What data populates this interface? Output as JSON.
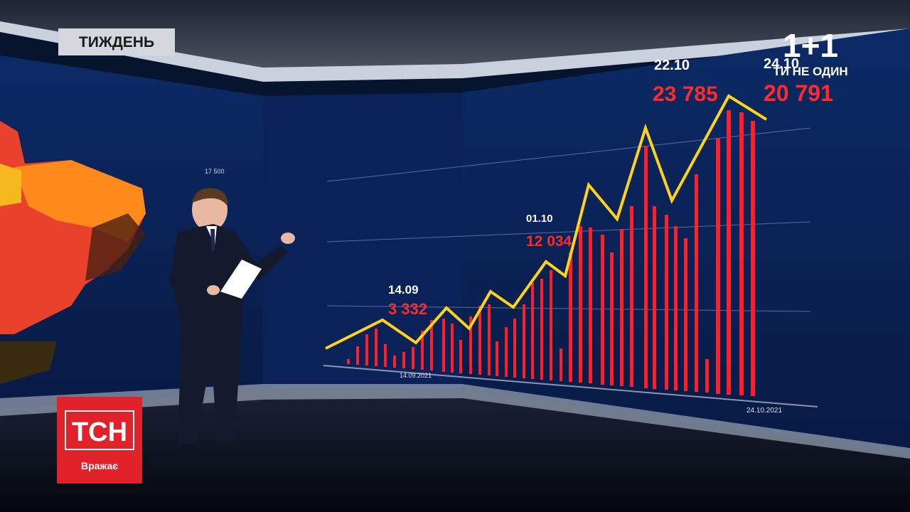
{
  "header": {
    "program": "ТИЖДЕНЬ"
  },
  "channel_logo": {
    "name": "1+1",
    "slogan": "ТИ НЕ ОДИН"
  },
  "show_logo": {
    "name": "ТСН",
    "tagline": "Вражає"
  },
  "map": {
    "label": "17 500"
  },
  "chart": {
    "annotations": [
      {
        "date": "14.09",
        "value": "3 332"
      },
      {
        "date": "01.10",
        "value": "12 034"
      },
      {
        "date": "22.10",
        "value": "23 785"
      },
      {
        "date": "24.10",
        "value": "20 791"
      }
    ],
    "axis_start": "14.09.2021",
    "axis_end": "24.10.2021"
  }
}
